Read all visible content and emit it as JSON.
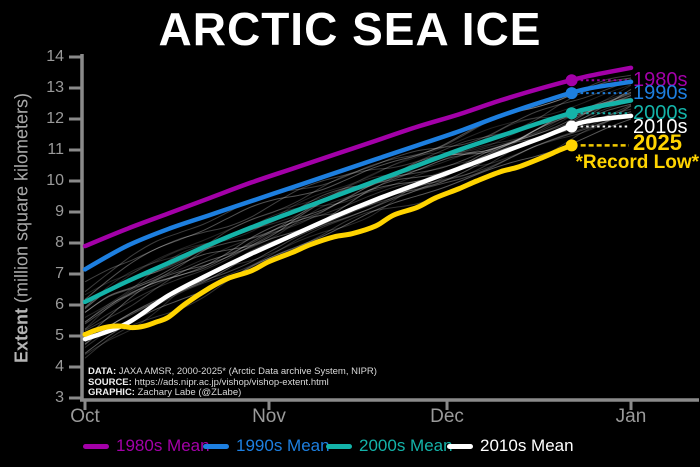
{
  "chart_data": {
    "type": "line",
    "title": "ARCTIC SEA ICE",
    "ylabel_bold": "Extent",
    "ylabel_rest": " (million square kilometers)",
    "ylim": [
      3,
      14
    ],
    "y_ticks": [
      "14",
      "13",
      "12",
      "11",
      "10",
      "9",
      "8",
      "7",
      "6",
      "5",
      "4",
      "3"
    ],
    "x_ticks": [
      {
        "label": "Oct",
        "day": 0
      },
      {
        "label": "Nov",
        "day": 31
      },
      {
        "label": "Dec",
        "day": 61
      },
      {
        "label": "Jan",
        "day": 92
      }
    ],
    "x_range_days": [
      0,
      92
    ],
    "axis_color": "#8a8a8a",
    "series": [
      {
        "name": "1980s Mean",
        "label": "1980s",
        "color": "#a300a8",
        "width": 4.5,
        "dot_day": 82,
        "days": [
          0,
          7,
          14,
          21,
          28,
          35,
          42,
          49,
          56,
          63,
          70,
          77,
          84,
          92
        ],
        "values": [
          7.9,
          8.45,
          8.95,
          9.45,
          9.95,
          10.4,
          10.85,
          11.3,
          11.75,
          12.15,
          12.6,
          13.0,
          13.35,
          13.65
        ]
      },
      {
        "name": "1990s Mean",
        "label": "1990s",
        "color": "#1d7fe0",
        "width": 4.5,
        "dot_day": 82,
        "days": [
          0,
          7,
          14,
          21,
          28,
          35,
          42,
          49,
          56,
          63,
          70,
          77,
          84,
          92
        ],
        "values": [
          7.15,
          7.9,
          8.45,
          8.9,
          9.35,
          9.8,
          10.25,
          10.7,
          11.15,
          11.6,
          12.1,
          12.55,
          12.95,
          13.2
        ]
      },
      {
        "name": "2000s Mean",
        "label": "2000s",
        "color": "#14b3a9",
        "width": 4.5,
        "dot_day": 82,
        "days": [
          0,
          7,
          14,
          21,
          28,
          35,
          42,
          49,
          56,
          63,
          70,
          77,
          84,
          92
        ],
        "values": [
          6.1,
          6.75,
          7.35,
          7.95,
          8.5,
          9.0,
          9.5,
          10.0,
          10.5,
          11.0,
          11.45,
          11.9,
          12.3,
          12.6
        ]
      },
      {
        "name": "2010s Mean",
        "label": "2010s",
        "color": "#ffffff",
        "width": 4.5,
        "dot_day": 82,
        "days": [
          0,
          7,
          14,
          21,
          28,
          35,
          42,
          49,
          56,
          63,
          70,
          77,
          84,
          92
        ],
        "values": [
          4.9,
          5.4,
          6.3,
          7.0,
          7.65,
          8.25,
          8.85,
          9.4,
          9.9,
          10.4,
          10.9,
          11.4,
          11.9,
          12.1
        ]
      },
      {
        "name": "2025",
        "label": "2025",
        "color": "#ffd400",
        "width": 5,
        "dot_day": 82,
        "record_low": true,
        "days": [
          0,
          2,
          4,
          6,
          8,
          10,
          12,
          14,
          17,
          21,
          24,
          28,
          31,
          35,
          38,
          42,
          45,
          49,
          52,
          56,
          59,
          63,
          66,
          70,
          73,
          77,
          80,
          82
        ],
        "values": [
          5.05,
          5.2,
          5.3,
          5.32,
          5.27,
          5.32,
          5.45,
          5.6,
          6.05,
          6.55,
          6.85,
          7.1,
          7.4,
          7.7,
          7.95,
          8.2,
          8.3,
          8.55,
          8.9,
          9.15,
          9.45,
          9.75,
          10.0,
          10.3,
          10.45,
          10.75,
          11.0,
          11.15
        ]
      }
    ],
    "record_low_label": "*Record Low*",
    "background_years": {
      "note": "individual years 2000-2025* shown as thin gray lines",
      "count": 25,
      "start_max": 6.6,
      "start_min": 4.35,
      "end_max": 13.3,
      "end_min": 12.0,
      "color": "#ffffff",
      "min_opacity": 0.13,
      "max_opacity": 0.34
    }
  },
  "legend": {
    "items": [
      {
        "label": "1980s Mean",
        "color": "#a300a8"
      },
      {
        "label": "1990s Mean",
        "color": "#1d7fe0"
      },
      {
        "label": "2000s Mean",
        "color": "#14b3a9"
      },
      {
        "label": "2010s Mean",
        "color": "#ffffff"
      }
    ]
  },
  "credits": {
    "data_label": "DATA:",
    "data_text": " JAXA AMSR, 2000-2025* (Arctic Data archive System, NIPR)",
    "source_label": "SOURCE:",
    "source_text": " https://ads.nipr.ac.jp/vishop/vishop-extent.html",
    "graphic_label": "GRAPHIC:",
    "graphic_text": " Zachary Labe (@ZLabe)"
  }
}
